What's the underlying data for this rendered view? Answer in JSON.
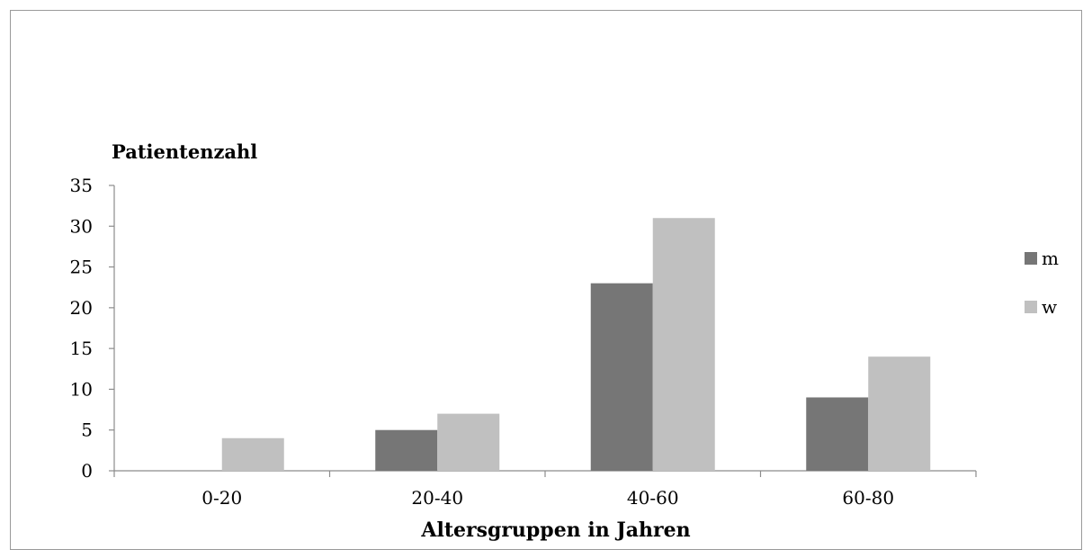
{
  "chart_data": {
    "type": "bar",
    "title": "",
    "ylabel": "Patientenzahl",
    "xlabel": "Altersgruppen in Jahren",
    "categories": [
      "0-20",
      "20-40",
      "40-60",
      "60-80"
    ],
    "series": [
      {
        "name": "m",
        "values": [
          0,
          5,
          23,
          9
        ],
        "color": "#767676"
      },
      {
        "name": "w",
        "values": [
          4,
          7,
          31,
          14
        ],
        "color": "#c0c0c0"
      }
    ],
    "ylim": [
      0,
      35
    ],
    "yticks": [
      0,
      5,
      10,
      15,
      20,
      25,
      30,
      35
    ],
    "grid": false,
    "legend": "right"
  }
}
